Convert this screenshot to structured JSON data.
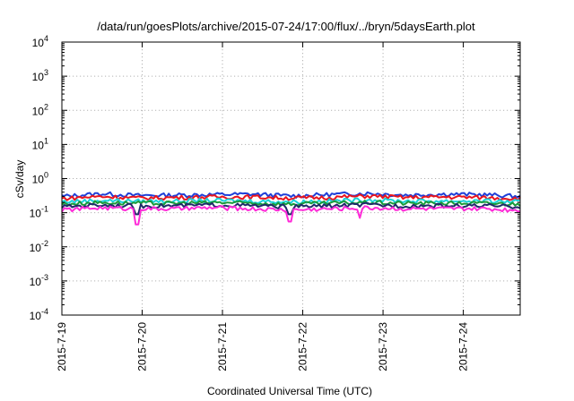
{
  "chart_data": {
    "type": "line",
    "title": "/data/run/goesPlots/archive/2015-07-24/17:00/flux/../bryn/5daysEarth.plot",
    "xlabel": "Coordinated Universal Time (UTC)",
    "ylabel": "cSv/day",
    "y_scale": "log",
    "ylim": [
      0.0001,
      10000
    ],
    "y_ticks": [
      {
        "value": 0.0001,
        "base": "10",
        "exp": "-4"
      },
      {
        "value": 0.001,
        "base": "10",
        "exp": "-3"
      },
      {
        "value": 0.01,
        "base": "10",
        "exp": "-2"
      },
      {
        "value": 0.1,
        "base": "10",
        "exp": "-1"
      },
      {
        "value": 1,
        "base": "10",
        "exp": "0"
      },
      {
        "value": 10,
        "base": "10",
        "exp": "1"
      },
      {
        "value": 100,
        "base": "10",
        "exp": "2"
      },
      {
        "value": 1000,
        "base": "10",
        "exp": "3"
      },
      {
        "value": 10000,
        "base": "10",
        "exp": "4"
      }
    ],
    "xlim": [
      "2015-07-19",
      "2015-07-24T17:00"
    ],
    "x_ticks": [
      {
        "date": "2015-07-19",
        "label": "2015-7-19"
      },
      {
        "date": "2015-07-20",
        "label": "2015-7-20"
      },
      {
        "date": "2015-07-21",
        "label": "2015-7-21"
      },
      {
        "date": "2015-07-22",
        "label": "2015-7-22"
      },
      {
        "date": "2015-07-23",
        "label": "2015-7-23"
      },
      {
        "date": "2015-07-24",
        "label": "2015-7-24"
      }
    ],
    "grid": true,
    "series": [
      {
        "color": "#1f3fd8",
        "base": 0.33,
        "x": [
          "2015-07-19",
          "2015-07-19T12:00",
          "2015-07-20",
          "2015-07-20T12:00",
          "2015-07-21",
          "2015-07-21T12:00",
          "2015-07-22",
          "2015-07-22T12:00",
          "2015-07-23",
          "2015-07-23T12:00",
          "2015-07-24",
          "2015-07-24T12:00",
          "2015-07-24T17:00"
        ],
        "values": [
          0.3,
          0.36,
          0.32,
          0.33,
          0.34,
          0.35,
          0.31,
          0.34,
          0.37,
          0.33,
          0.35,
          0.34,
          0.3
        ]
      },
      {
        "color": "#e8141e",
        "base": 0.28,
        "x": [
          "2015-07-19",
          "2015-07-19T12:00",
          "2015-07-20",
          "2015-07-20T12:00",
          "2015-07-21",
          "2015-07-21T12:00",
          "2015-07-22",
          "2015-07-22T12:00",
          "2015-07-23",
          "2015-07-23T12:00",
          "2015-07-24",
          "2015-07-24T12:00",
          "2015-07-24T17:00"
        ],
        "values": [
          0.26,
          0.3,
          0.27,
          0.28,
          0.29,
          0.29,
          0.27,
          0.28,
          0.31,
          0.28,
          0.29,
          0.28,
          0.26
        ]
      },
      {
        "color": "#1ad2d8",
        "base": 0.22,
        "x": [
          "2015-07-19",
          "2015-07-19T12:00",
          "2015-07-20",
          "2015-07-20T12:00",
          "2015-07-21",
          "2015-07-21T12:00",
          "2015-07-22",
          "2015-07-22T12:00",
          "2015-07-23",
          "2015-07-23T12:00",
          "2015-07-24",
          "2015-07-24T12:00",
          "2015-07-24T17:00"
        ],
        "values": [
          0.21,
          0.23,
          0.22,
          0.22,
          0.23,
          0.22,
          0.21,
          0.22,
          0.24,
          0.22,
          0.22,
          0.22,
          0.21
        ]
      },
      {
        "color": "#1a9a3a",
        "base": 0.19,
        "x": [
          "2015-07-19",
          "2015-07-19T12:00",
          "2015-07-20",
          "2015-07-20T12:00",
          "2015-07-21",
          "2015-07-21T12:00",
          "2015-07-22",
          "2015-07-22T12:00",
          "2015-07-23",
          "2015-07-23T12:00",
          "2015-07-24",
          "2015-07-24T12:00",
          "2015-07-24T17:00"
        ],
        "values": [
          0.18,
          0.2,
          0.19,
          0.19,
          0.2,
          0.19,
          0.18,
          0.19,
          0.2,
          0.19,
          0.19,
          0.19,
          0.18
        ]
      },
      {
        "color": "#1f2a6a",
        "base": 0.16,
        "x": [
          "2015-07-19",
          "2015-07-19T12:00",
          "2015-07-20",
          "2015-07-20T12:00",
          "2015-07-21",
          "2015-07-21T12:00",
          "2015-07-22",
          "2015-07-22T12:00",
          "2015-07-23",
          "2015-07-23T12:00",
          "2015-07-24",
          "2015-07-24T12:00",
          "2015-07-24T17:00"
        ],
        "values": [
          0.15,
          0.17,
          0.16,
          0.16,
          0.17,
          0.16,
          0.15,
          0.16,
          0.17,
          0.16,
          0.16,
          0.16,
          0.15
        ]
      },
      {
        "color": "#ff2ad8",
        "base": 0.13,
        "x": [
          "2015-07-19",
          "2015-07-19T12:00",
          "2015-07-20",
          "2015-07-20T12:00",
          "2015-07-21",
          "2015-07-21T12:00",
          "2015-07-22",
          "2015-07-22T12:00",
          "2015-07-23",
          "2015-07-23T12:00",
          "2015-07-24",
          "2015-07-24T12:00",
          "2015-07-24T17:00"
        ],
        "values": [
          0.12,
          0.14,
          0.13,
          0.13,
          0.14,
          0.13,
          0.12,
          0.13,
          0.14,
          0.13,
          0.13,
          0.13,
          0.12
        ]
      }
    ],
    "dips": [
      {
        "series": 5,
        "date": "2015-07-19T22:30",
        "value": 0.045
      },
      {
        "series": 5,
        "date": "2015-07-21T20:00",
        "value": 0.055
      },
      {
        "series": 5,
        "date": "2015-07-22T17:00",
        "value": 0.07
      },
      {
        "series": 4,
        "date": "2015-07-19T22:30",
        "value": 0.09
      },
      {
        "series": 4,
        "date": "2015-07-21T20:00",
        "value": 0.09
      }
    ]
  }
}
